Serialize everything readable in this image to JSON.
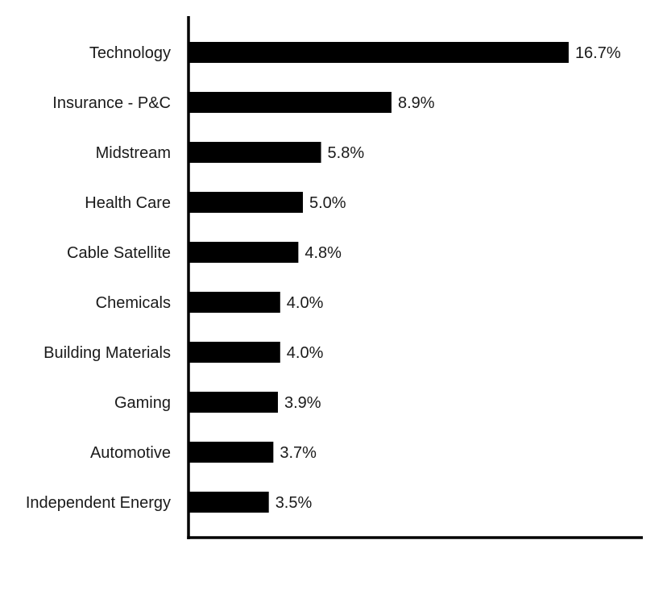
{
  "chart_data": {
    "type": "bar",
    "orientation": "horizontal",
    "categories": [
      "Technology",
      "Insurance - P&C",
      "Midstream",
      "Health Care",
      "Cable Satellite",
      "Chemicals",
      "Building Materials",
      "Gaming",
      "Automotive",
      "Independent Energy"
    ],
    "values": [
      16.7,
      8.9,
      5.8,
      5.0,
      4.8,
      4.0,
      4.0,
      3.9,
      3.7,
      3.5
    ],
    "value_labels": [
      "16.7%",
      "8.9%",
      "5.8%",
      "5.0%",
      "4.8%",
      "4.0%",
      "4.0%",
      "3.9%",
      "3.7%",
      "3.5%"
    ],
    "title": "",
    "xlabel": "",
    "ylabel": "",
    "xlim": [
      0,
      20
    ],
    "grid": false,
    "legend": "none",
    "bar_color": "#000000",
    "axis_color": "#000000"
  }
}
